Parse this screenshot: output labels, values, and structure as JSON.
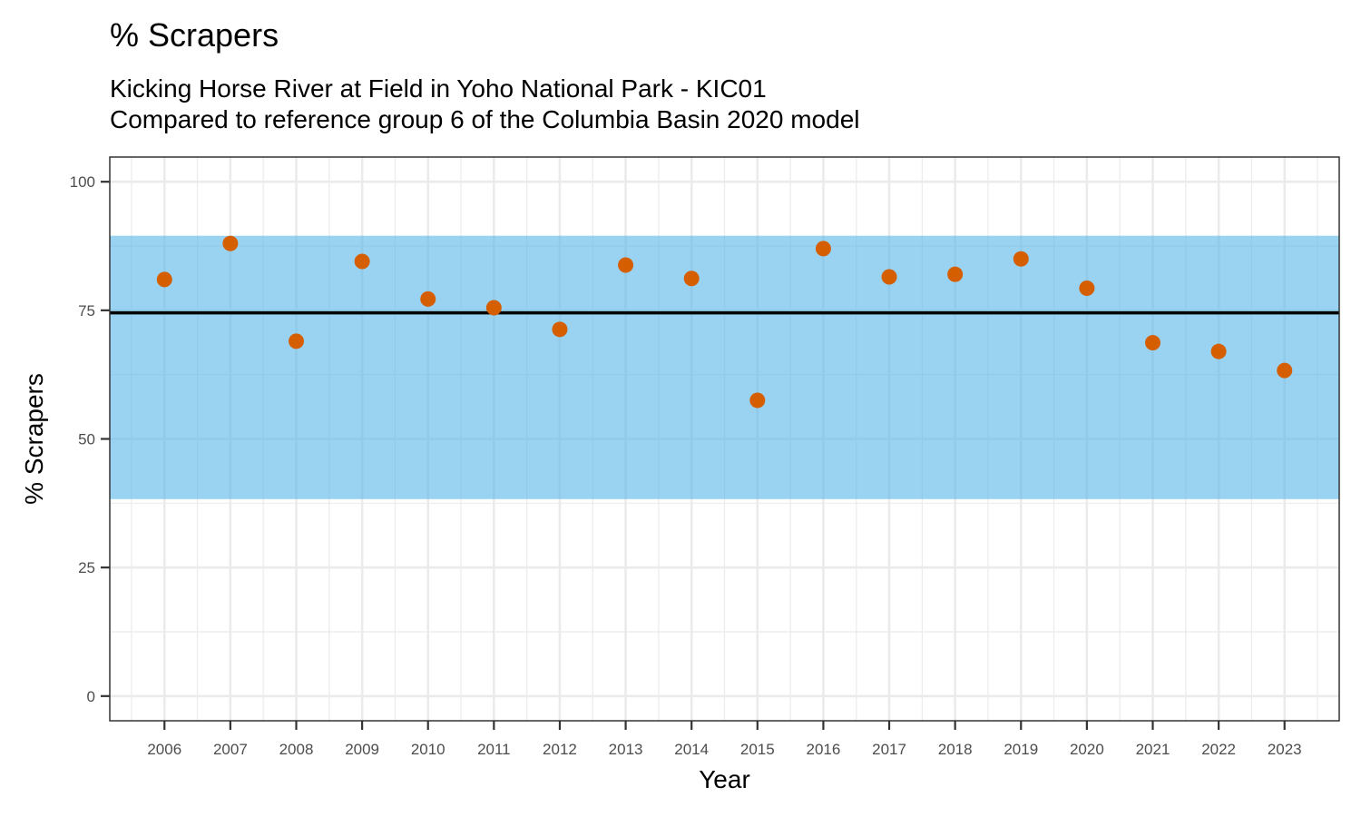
{
  "title": "% Scrapers",
  "subtitle_line1": "Kicking Horse River at Field in Yoho National Park - KIC01",
  "subtitle_line2": "Compared to reference group 6 of the Columbia Basin 2020 model",
  "chart_data": {
    "type": "scatter",
    "xlabel": "Year",
    "ylabel": "% Scrapers",
    "x": [
      2006,
      2007,
      2008,
      2009,
      2010,
      2011,
      2012,
      2013,
      2014,
      2015,
      2016,
      2017,
      2018,
      2019,
      2020,
      2021,
      2022,
      2023
    ],
    "values": [
      81.0,
      88.0,
      69.0,
      84.5,
      77.2,
      75.5,
      71.3,
      83.8,
      81.2,
      57.5,
      87.0,
      81.5,
      82.0,
      85.0,
      79.3,
      68.7,
      67.0,
      63.3
    ],
    "x_range": [
      2005.17,
      2023.83
    ],
    "ylim": [
      -4.8,
      104.8
    ],
    "yticks": [
      0,
      25,
      50,
      75,
      100
    ],
    "reference_line": 74.5,
    "reference_band": [
      38.3,
      89.5
    ],
    "grid": true,
    "colors": {
      "points": "#d55e00",
      "band": "#56b4e9",
      "reference_line": "#000000",
      "grid": "#ebebeb",
      "panel_border": "#333333"
    }
  }
}
